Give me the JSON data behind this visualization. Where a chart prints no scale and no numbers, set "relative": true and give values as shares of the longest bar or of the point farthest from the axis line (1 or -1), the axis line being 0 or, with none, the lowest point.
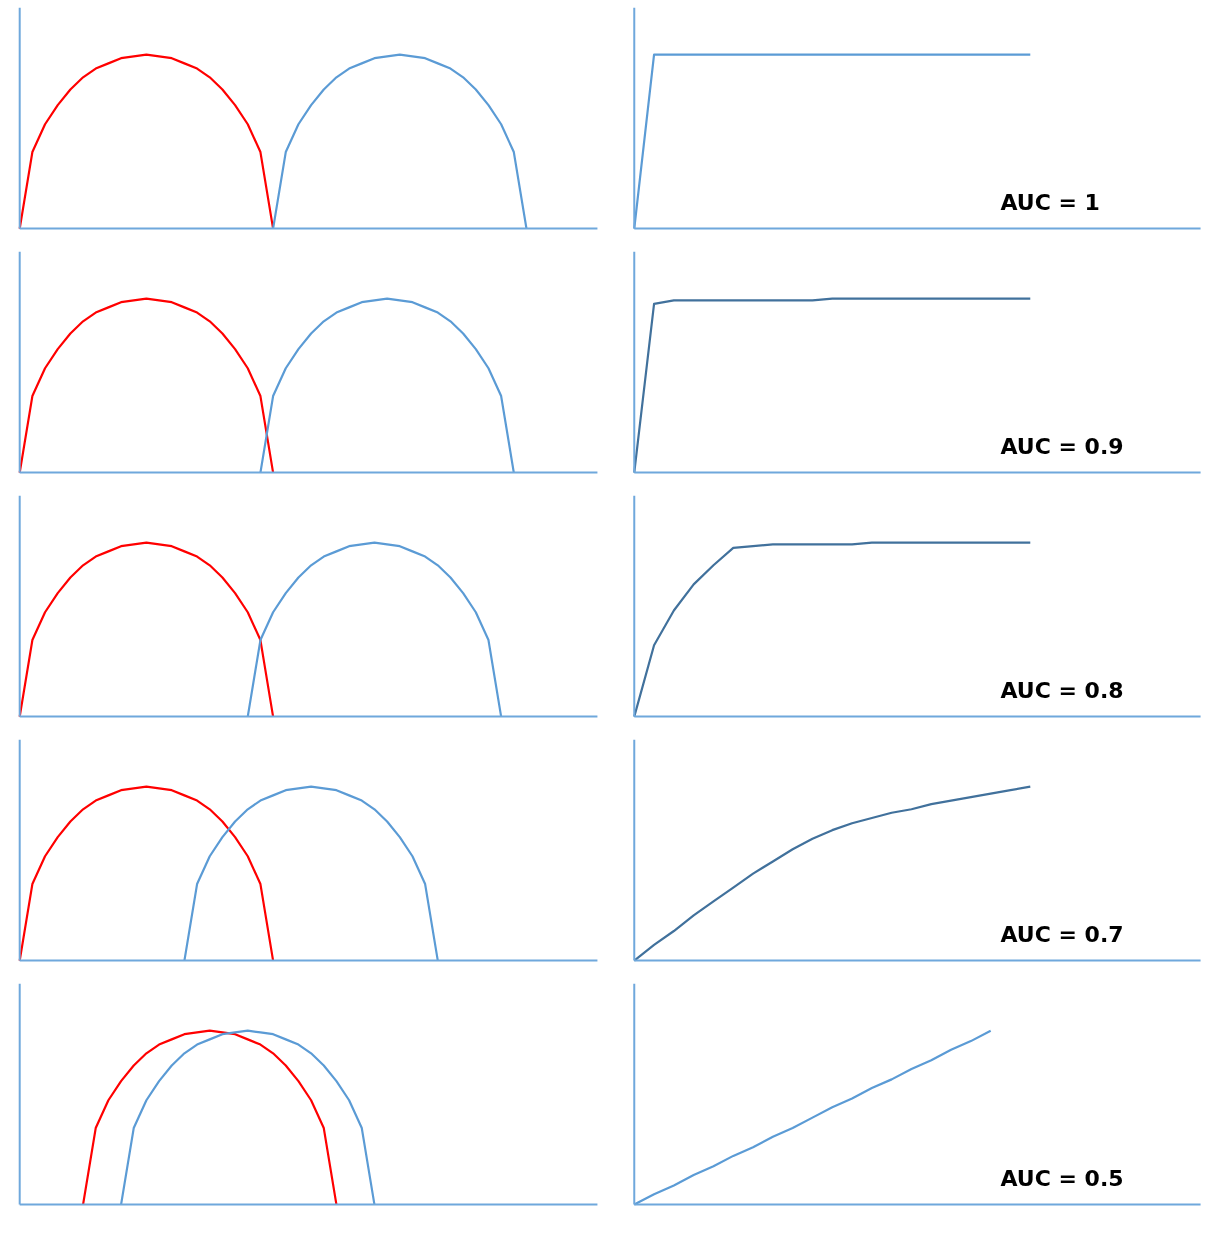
{
  "chart_data": [
    {
      "type": "line",
      "relative": true,
      "categories": [
        null,
        null,
        null,
        null,
        null,
        null,
        null,
        null,
        null,
        null,
        null,
        null,
        null,
        null,
        null,
        null,
        null,
        null,
        null,
        null,
        null,
        null,
        null,
        null,
        null,
        null,
        null,
        null,
        null,
        null,
        null,
        null,
        null,
        null,
        null,
        null,
        null,
        null,
        null,
        null,
        null,
        null,
        null,
        null,
        null
      ],
      "series": [
        {
          "color": "#ff0000",
          "values": [
            0,
            0.44,
            0.6,
            0.71,
            0.8,
            0.87,
            0.92,
            0.95,
            0.98,
            0.99,
            1,
            0.99,
            0.98,
            0.95,
            0.92,
            0.87,
            0.8,
            0.71,
            0.6,
            0.44,
            0,
            null,
            null,
            null,
            null,
            null,
            null,
            null,
            null,
            null,
            null,
            null,
            null,
            null,
            null,
            null,
            null,
            null,
            null,
            null,
            null,
            null,
            null,
            null,
            null
          ]
        },
        {
          "color": "#5b9bd5",
          "values": [
            null,
            null,
            null,
            null,
            null,
            null,
            null,
            null,
            null,
            null,
            null,
            null,
            null,
            null,
            null,
            null,
            null,
            null,
            null,
            null,
            0,
            0.44,
            0.6,
            0.71,
            0.8,
            0.87,
            0.92,
            0.95,
            0.98,
            0.99,
            1,
            0.99,
            0.98,
            0.95,
            0.92,
            0.87,
            0.8,
            0.71,
            0.6,
            0.44,
            0,
            null,
            null,
            null,
            null
          ]
        }
      ]
    },
    {
      "type": "line",
      "relative": true,
      "categories": [
        null,
        null,
        null,
        null,
        null,
        null,
        null,
        null,
        null,
        null,
        null,
        null,
        null,
        null,
        null,
        null,
        null,
        null,
        null,
        null,
        null,
        null,
        null,
        null,
        null,
        null,
        null,
        null
      ],
      "annotations": [
        "AUC = 1"
      ],
      "series": [
        {
          "color": "#5b9bd5",
          "values": [
            0,
            1,
            1,
            1,
            1,
            1,
            1,
            1,
            1,
            1,
            1,
            1,
            1,
            1,
            1,
            1,
            1,
            1,
            1,
            1,
            1,
            null,
            null,
            null,
            null,
            null,
            null,
            null
          ]
        }
      ]
    },
    {
      "type": "line",
      "relative": true,
      "categories": [
        null,
        null,
        null,
        null,
        null,
        null,
        null,
        null,
        null,
        null,
        null,
        null,
        null,
        null,
        null,
        null,
        null,
        null,
        null,
        null,
        null,
        null,
        null,
        null,
        null,
        null,
        null,
        null,
        null,
        null,
        null,
        null,
        null,
        null,
        null,
        null,
        null,
        null,
        null,
        null,
        null,
        null,
        null,
        null,
        null
      ],
      "series": [
        {
          "color": "#ff0000",
          "values": [
            0,
            0.44,
            0.6,
            0.71,
            0.8,
            0.87,
            0.92,
            0.95,
            0.98,
            0.99,
            1,
            0.99,
            0.98,
            0.95,
            0.92,
            0.87,
            0.8,
            0.71,
            0.6,
            0.44,
            0,
            null,
            null,
            null,
            null,
            null,
            null,
            null,
            null,
            null,
            null,
            null,
            null,
            null,
            null,
            null,
            null,
            null,
            null,
            null,
            null,
            null,
            null,
            null,
            null
          ]
        },
        {
          "color": "#5b9bd5",
          "values": [
            null,
            null,
            null,
            null,
            null,
            null,
            null,
            null,
            null,
            null,
            null,
            null,
            null,
            null,
            null,
            null,
            null,
            null,
            null,
            0,
            0.44,
            0.6,
            0.71,
            0.8,
            0.87,
            0.92,
            0.95,
            0.98,
            0.99,
            1,
            0.99,
            0.98,
            0.95,
            0.92,
            0.87,
            0.8,
            0.71,
            0.6,
            0.44,
            0,
            null,
            null,
            null,
            null,
            null
          ]
        }
      ]
    },
    {
      "type": "line",
      "relative": true,
      "categories": [
        null,
        null,
        null,
        null,
        null,
        null,
        null,
        null,
        null,
        null,
        null,
        null,
        null,
        null,
        null,
        null,
        null,
        null,
        null,
        null,
        null,
        null,
        null,
        null,
        null,
        null,
        null,
        null
      ],
      "annotations": [
        "AUC = 0.9"
      ],
      "series": [
        {
          "color": "#41719c",
          "values": [
            0,
            0.97,
            0.99,
            0.99,
            0.99,
            0.99,
            0.99,
            0.99,
            0.99,
            0.99,
            1,
            1,
            1,
            1,
            1,
            1,
            1,
            1,
            1,
            1,
            1,
            null,
            null,
            null,
            null,
            null,
            null,
            null
          ]
        }
      ]
    },
    {
      "type": "line",
      "relative": true,
      "categories": [
        null,
        null,
        null,
        null,
        null,
        null,
        null,
        null,
        null,
        null,
        null,
        null,
        null,
        null,
        null,
        null,
        null,
        null,
        null,
        null,
        null,
        null,
        null,
        null,
        null,
        null,
        null,
        null,
        null,
        null,
        null,
        null,
        null,
        null,
        null,
        null,
        null,
        null,
        null,
        null,
        null,
        null,
        null,
        null,
        null
      ],
      "series": [
        {
          "color": "#ff0000",
          "values": [
            0,
            0.44,
            0.6,
            0.71,
            0.8,
            0.87,
            0.92,
            0.95,
            0.98,
            0.99,
            1,
            0.99,
            0.98,
            0.95,
            0.92,
            0.87,
            0.8,
            0.71,
            0.6,
            0.44,
            0,
            null,
            null,
            null,
            null,
            null,
            null,
            null,
            null,
            null,
            null,
            null,
            null,
            null,
            null,
            null,
            null,
            null,
            null,
            null,
            null,
            null,
            null,
            null,
            null
          ]
        },
        {
          "color": "#5b9bd5",
          "values": [
            null,
            null,
            null,
            null,
            null,
            null,
            null,
            null,
            null,
            null,
            null,
            null,
            null,
            null,
            null,
            null,
            null,
            null,
            0,
            0.44,
            0.6,
            0.71,
            0.8,
            0.87,
            0.92,
            0.95,
            0.98,
            0.99,
            1,
            0.99,
            0.98,
            0.95,
            0.92,
            0.87,
            0.8,
            0.71,
            0.6,
            0.44,
            0,
            null,
            null,
            null,
            null,
            null,
            null
          ]
        }
      ]
    },
    {
      "type": "line",
      "relative": true,
      "categories": [
        null,
        null,
        null,
        null,
        null,
        null,
        null,
        null,
        null,
        null,
        null,
        null,
        null,
        null,
        null,
        null,
        null,
        null,
        null,
        null,
        null,
        null,
        null,
        null,
        null,
        null,
        null,
        null
      ],
      "annotations": [
        "AUC = 0.8"
      ],
      "series": [
        {
          "color": "#41719c",
          "values": [
            0,
            0.41,
            0.61,
            0.76,
            0.87,
            0.97,
            0.98,
            0.99,
            0.99,
            0.99,
            0.99,
            0.99,
            1,
            1,
            1,
            1,
            1,
            1,
            1,
            1,
            1,
            null,
            null,
            null,
            null,
            null,
            null,
            null
          ]
        }
      ]
    },
    {
      "type": "line",
      "relative": true,
      "categories": [
        null,
        null,
        null,
        null,
        null,
        null,
        null,
        null,
        null,
        null,
        null,
        null,
        null,
        null,
        null,
        null,
        null,
        null,
        null,
        null,
        null,
        null,
        null,
        null,
        null,
        null,
        null,
        null,
        null,
        null,
        null,
        null,
        null,
        null,
        null,
        null,
        null,
        null,
        null,
        null,
        null,
        null,
        null,
        null,
        null
      ],
      "series": [
        {
          "color": "#ff0000",
          "values": [
            0,
            0.44,
            0.6,
            0.71,
            0.8,
            0.87,
            0.92,
            0.95,
            0.98,
            0.99,
            1,
            0.99,
            0.98,
            0.95,
            0.92,
            0.87,
            0.8,
            0.71,
            0.6,
            0.44,
            0,
            null,
            null,
            null,
            null,
            null,
            null,
            null,
            null,
            null,
            null,
            null,
            null,
            null,
            null,
            null,
            null,
            null,
            null,
            null,
            null,
            null,
            null,
            null,
            null
          ]
        },
        {
          "color": "#5b9bd5",
          "values": [
            null,
            null,
            null,
            null,
            null,
            null,
            null,
            null,
            null,
            null,
            null,
            null,
            null,
            0,
            0.44,
            0.6,
            0.71,
            0.8,
            0.87,
            0.92,
            0.95,
            0.98,
            0.99,
            1,
            0.99,
            0.98,
            0.95,
            0.92,
            0.87,
            0.8,
            0.71,
            0.6,
            0.44,
            0,
            null,
            null,
            null,
            null,
            null,
            null,
            null,
            null,
            null,
            null,
            null
          ]
        }
      ]
    },
    {
      "type": "line",
      "relative": true,
      "categories": [
        null,
        null,
        null,
        null,
        null,
        null,
        null,
        null,
        null,
        null,
        null,
        null,
        null,
        null,
        null,
        null,
        null,
        null,
        null,
        null,
        null,
        null,
        null,
        null,
        null,
        null,
        null,
        null
      ],
      "annotations": [
        "AUC = 0.7"
      ],
      "series": [
        {
          "color": "#41719c",
          "values": [
            0,
            0.09,
            0.17,
            0.26,
            0.34,
            0.42,
            0.5,
            0.57,
            0.64,
            0.7,
            0.75,
            0.79,
            0.82,
            0.85,
            0.87,
            0.9,
            0.92,
            0.94,
            0.96,
            0.98,
            1,
            null,
            null,
            null,
            null,
            null,
            null,
            null
          ]
        }
      ]
    },
    {
      "type": "line",
      "relative": true,
      "categories": [
        null,
        null,
        null,
        null,
        null,
        null,
        null,
        null,
        null,
        null,
        null,
        null,
        null,
        null,
        null,
        null,
        null,
        null,
        null,
        null,
        null,
        null,
        null,
        null,
        null,
        null,
        null,
        null,
        null,
        null,
        null,
        null,
        null,
        null,
        null,
        null,
        null,
        null,
        null,
        null,
        null,
        null,
        null,
        null,
        null
      ],
      "series": [
        {
          "color": "#ff0000",
          "values": [
            null,
            null,
            null,
            null,
            null,
            0,
            0.44,
            0.6,
            0.71,
            0.8,
            0.87,
            0.92,
            0.95,
            0.98,
            0.99,
            1,
            0.99,
            0.98,
            0.95,
            0.92,
            0.87,
            0.8,
            0.71,
            0.6,
            0.44,
            0,
            null,
            null,
            null,
            null,
            null,
            null,
            null,
            null,
            null,
            null,
            null,
            null,
            null,
            null,
            null,
            null,
            null,
            null,
            null
          ]
        },
        {
          "color": "#5b9bd5",
          "values": [
            null,
            null,
            null,
            null,
            null,
            null,
            null,
            null,
            0,
            0.44,
            0.6,
            0.71,
            0.8,
            0.87,
            0.92,
            0.95,
            0.98,
            0.99,
            1,
            0.99,
            0.98,
            0.95,
            0.92,
            0.87,
            0.8,
            0.71,
            0.6,
            0.44,
            0,
            null,
            null,
            null,
            null,
            null,
            null,
            null,
            null,
            null,
            null,
            null,
            null,
            null,
            null,
            null,
            null
          ]
        }
      ]
    },
    {
      "type": "line",
      "relative": true,
      "categories": [
        null,
        null,
        null,
        null,
        null,
        null,
        null,
        null,
        null,
        null,
        null,
        null,
        null,
        null,
        null,
        null,
        null,
        null,
        null,
        null,
        null,
        null,
        null,
        null,
        null,
        null,
        null,
        null
      ],
      "annotations": [
        "AUC = 0.5"
      ],
      "series": [
        {
          "color": "#5b9bd5",
          "values": [
            0,
            0.06,
            0.11,
            0.17,
            0.22,
            0.28,
            0.33,
            0.39,
            0.44,
            0.5,
            0.56,
            0.61,
            0.67,
            0.72,
            0.78,
            0.83,
            0.89,
            0.94,
            1,
            null,
            null,
            null,
            null,
            null,
            null,
            null,
            null,
            null
          ]
        }
      ]
    }
  ]
}
